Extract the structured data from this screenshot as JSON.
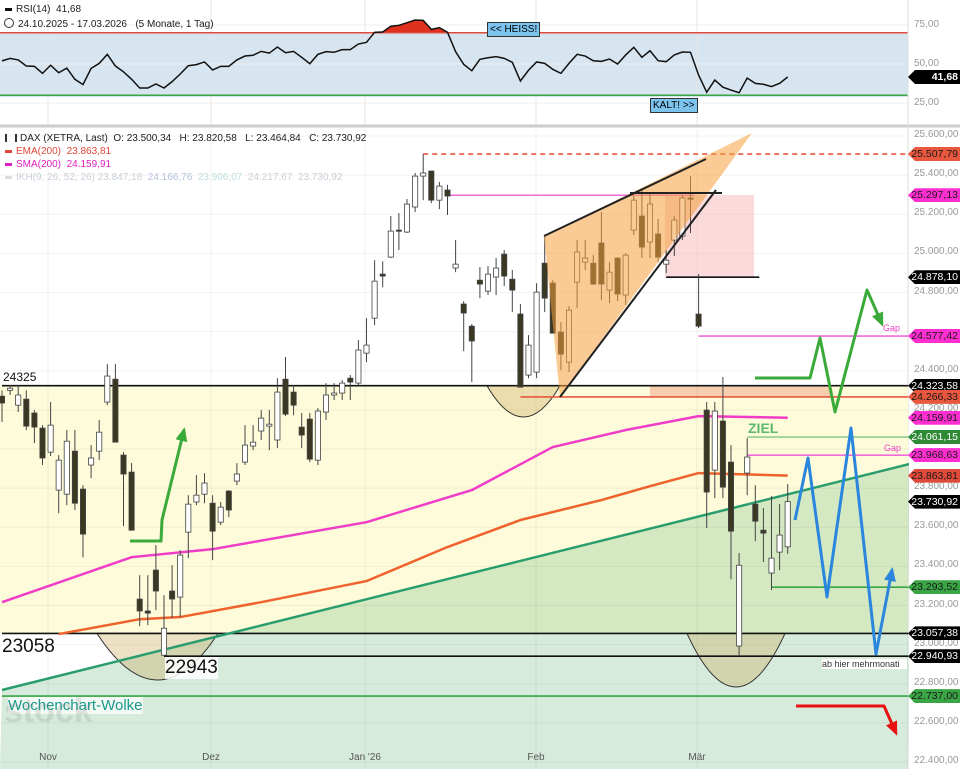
{
  "rsi_panel": {
    "title": "RSI(14)",
    "value": "41,68",
    "range": "24.10.2025 - 17.03.2026",
    "period": "(5 Monate, 1 Tag)",
    "ticks": [
      "75,00",
      "50,00",
      "25,00"
    ],
    "badge": "41,68",
    "hot_label": "<< HEISS!",
    "cold_label": "KALT! >>"
  },
  "price_panel": {
    "instrument": "DAX (XETRA, Last)",
    "ohlc": "O: 23.500,34   H: 23.820,58   L: 23.464,84   C: 23.730,92",
    "ema_label": "EMA(200)",
    "ema_value": "23.863,81",
    "sma_label": "SMA(200)",
    "sma_value": "24.159,91",
    "ikh_label": "IKH(9, 26, 52, 26)",
    "ikh_values": [
      "23.847,18",
      "24.166,76",
      "23.906,07",
      "24.217,67",
      "23.730,92"
    ],
    "price_ticks": [
      "25.600,00",
      "25.400,00",
      "25.200,00",
      "25.000,00",
      "24.800,00",
      "24.400,00",
      "24.200,00",
      "23.800,00",
      "23.600,00",
      "23.400,00",
      "23.200,00",
      "23.000,00",
      "22.800,00",
      "22.600,00",
      "22.400,00"
    ],
    "x_ticks": [
      "Nov",
      "Dez",
      "Jan '26",
      "Feb",
      "Mär"
    ],
    "tags": [
      {
        "text": "25.507,79",
        "bg": "#e8573e",
        "fg": "#1a1a1a"
      },
      {
        "text": "25.297,13",
        "bg": "#ff2ed1",
        "fg": "#1a1a1a"
      },
      {
        "text": "24.878,10",
        "bg": "#000000",
        "fg": "#ffffff"
      },
      {
        "text": "24.577,42",
        "bg": "#ff2ed1",
        "fg": "#1a1a1a"
      },
      {
        "text": "24.323,58",
        "bg": "#000000",
        "fg": "#ffffff"
      },
      {
        "text": "24.266,33",
        "bg": "#e8573e",
        "fg": "#1a1a1a"
      },
      {
        "text": "24.159,91",
        "bg": "#ff2ed1",
        "fg": "#1a1a1a"
      },
      {
        "text": "24.061,15",
        "bg": "#2f8a35",
        "fg": "#ffffff"
      },
      {
        "text": "23.968,63",
        "bg": "#ff2ed1",
        "fg": "#1a1a1a"
      },
      {
        "text": "23.863,81",
        "bg": "#e04a3a",
        "fg": "#1a1a1a"
      },
      {
        "text": "23.730,92",
        "bg": "#000000",
        "fg": "#ffffff"
      },
      {
        "text": "23.293,52",
        "bg": "#3aa545",
        "fg": "#1a1a1a"
      },
      {
        "text": "23.057,38",
        "bg": "#000000",
        "fg": "#ffffff"
      },
      {
        "text": "22.940,93",
        "bg": "#000000",
        "fg": "#ffffff"
      },
      {
        "text": "22.737,00",
        "bg": "#3aa545",
        "fg": "#1a1a1a"
      }
    ],
    "annotations": {
      "resistance_label": "24325",
      "support_label": "23058",
      "low_label": "22943",
      "target_label": "ZIEL",
      "gap_label_upper": "Gap",
      "gap_label_lower": "Gap",
      "cloud_label": "Wochenchart-Wolke",
      "note_label": "ab hier mehrmonati",
      "watermark": "stock"
    }
  },
  "colors": {
    "bear": "#3a3722",
    "bull": "#ffffff",
    "ema": "#f0622d",
    "sma": "#f03cc8",
    "trend": "#2a9d6e",
    "rsi_band": "#d6e5f0",
    "rsi_hot": "#e0301e",
    "forecast": "#2a86dc",
    "green_arrow": "#3aaa3a",
    "red_arrow": "#e81010"
  },
  "chart_data": [
    {
      "type": "line",
      "title": "RSI(14)",
      "ylim": [
        15,
        85
      ],
      "hlines": [
        70,
        30
      ],
      "values": [
        52,
        53.6,
        52.6,
        48.7,
        48.5,
        44,
        49.2,
        44.4,
        47.4,
        40.2,
        36.8,
        47.2,
        50.4,
        56.2,
        48.7,
        45,
        40.2,
        34.6,
        34.6,
        37.2,
        34.6,
        38.7,
        43.6,
        48.9,
        49.6,
        51.3,
        46.2,
        48.5,
        48.5,
        52.6,
        55.1,
        55.6,
        58.1,
        57,
        60.9,
        57.2,
        58.1,
        54.3,
        50.2,
        56.2,
        57.9,
        57.5,
        59.2,
        59.2,
        62.8,
        63.9,
        70.3,
        70.5,
        74.2,
        74.8,
        76.5,
        78.2,
        78,
        72.2,
        73.3,
        70.3,
        57.9,
        49.8,
        45.7,
        53,
        54,
        54.7,
        53.6,
        51.1,
        39.1,
        46,
        51.3,
        50.4,
        46.6,
        44,
        50.4,
        56.2,
        55.1,
        52.1,
        51.7,
        53.2,
        50,
        55.8,
        60.7,
        54.3,
        58.5,
        52.1,
        51.5,
        55.8,
        57.7,
        57.5,
        42.9,
        31.9,
        39.7,
        35.1,
        33.3,
        31.6,
        41,
        37.6,
        37,
        35.5,
        37.6,
        41.68
      ]
    },
    {
      "type": "candlestick",
      "title": "DAX (XETRA, Last)",
      "x_range": [
        "24.10.2025",
        "17.03.2026"
      ],
      "ylim": [
        22400,
        25600
      ],
      "candles_ohlc": [
        [
          24270,
          24300,
          24138,
          24235
        ],
        [
          24300,
          24327,
          24276,
          24311
        ],
        [
          24224,
          24327,
          24189,
          24276
        ],
        [
          24255,
          24300,
          24097,
          24117
        ],
        [
          24184,
          24199,
          24030,
          24112
        ],
        [
          24107,
          24122,
          23918,
          23954
        ],
        [
          23984,
          24240,
          23964,
          24122
        ],
        [
          23790,
          23969,
          23672,
          23943
        ],
        [
          23769,
          24097,
          23713,
          24040
        ],
        [
          23989,
          24097,
          23688,
          23723
        ],
        [
          23795,
          23815,
          23447,
          23565
        ],
        [
          23918,
          24020,
          23851,
          23954
        ],
        [
          23989,
          24148,
          23943,
          24086
        ],
        [
          24240,
          24434,
          24224,
          24373
        ],
        [
          24357,
          24434,
          24035,
          24035
        ],
        [
          23969,
          23984,
          23606,
          23872
        ],
        [
          23882,
          23928,
          23585,
          23585
        ],
        [
          23233,
          23355,
          23095,
          23172
        ],
        [
          23172,
          23355,
          23100,
          23161
        ],
        [
          23381,
          23509,
          23177,
          23274
        ],
        [
          22946,
          23253,
          22943,
          23084
        ],
        [
          23274,
          23406,
          23136,
          23233
        ],
        [
          23243,
          23483,
          23141,
          23458
        ],
        [
          23575,
          23764,
          23442,
          23718
        ],
        [
          23729,
          23867,
          23713,
          23764
        ],
        [
          23769,
          23877,
          23723,
          23826
        ],
        [
          23723,
          23764,
          23432,
          23580
        ],
        [
          23626,
          23729,
          23611,
          23703
        ],
        [
          23785,
          23790,
          23652,
          23688
        ],
        [
          23836,
          23928,
          23815,
          23872
        ],
        [
          23933,
          24122,
          23918,
          24020
        ],
        [
          24015,
          24122,
          23994,
          24035
        ],
        [
          24092,
          24199,
          24046,
          24158
        ],
        [
          24117,
          24199,
          23994,
          24127
        ],
        [
          24046,
          24362,
          24005,
          24291
        ],
        [
          24357,
          24470,
          24168,
          24178
        ],
        [
          24291,
          24327,
          24173,
          24224
        ],
        [
          24112,
          24184,
          24005,
          24071
        ],
        [
          24153,
          24184,
          23933,
          23948
        ],
        [
          23943,
          24209,
          23918,
          24194
        ],
        [
          24189,
          24337,
          24148,
          24276
        ],
        [
          24276,
          24337,
          24250,
          24286
        ],
        [
          24286,
          24352,
          24250,
          24337
        ],
        [
          24362,
          24378,
          24250,
          24342
        ],
        [
          24337,
          24557,
          24327,
          24506
        ],
        [
          24490,
          24669,
          24444,
          24531
        ],
        [
          24669,
          24965,
          24633,
          24858
        ],
        [
          24894,
          24960,
          24826,
          24884
        ],
        [
          24981,
          25191,
          24976,
          25114
        ],
        [
          25119,
          25206,
          25017,
          25114
        ],
        [
          25109,
          25278,
          25104,
          25252
        ],
        [
          25237,
          25411,
          25211,
          25395
        ],
        [
          25395,
          25508,
          25272,
          25411
        ],
        [
          25421,
          25421,
          25257,
          25272
        ],
        [
          25272,
          25365,
          25226,
          25344
        ],
        [
          25324,
          25350,
          25196,
          25293
        ],
        [
          24925,
          25068,
          24904,
          24945
        ],
        [
          24741,
          24756,
          24500,
          24695
        ],
        [
          24628,
          24639,
          24342,
          24552
        ],
        [
          24863,
          24930,
          24771,
          24843
        ],
        [
          24807,
          24935,
          24787,
          24894
        ],
        [
          24879,
          24976,
          24787,
          24925
        ],
        [
          24996,
          25017,
          24833,
          24884
        ],
        [
          24868,
          24915,
          24700,
          24812
        ],
        [
          24690,
          24741,
          24316,
          24316
        ],
        [
          24378,
          24582,
          24362,
          24531
        ],
        [
          24393,
          24848,
          24362,
          24802
        ],
        [
          24950,
          25088,
          24700,
          24771
        ],
        [
          24848,
          24863,
          24592,
          24592
        ],
        [
          24598,
          24649,
          24403,
          24485
        ],
        [
          24444,
          24730,
          24393,
          24710
        ],
        [
          24853,
          25068,
          24720,
          25007
        ],
        [
          24955,
          25068,
          24915,
          24976
        ],
        [
          24950,
          24991,
          24838,
          24843
        ],
        [
          25053,
          25211,
          24761,
          24843
        ],
        [
          24812,
          24955,
          24746,
          24904
        ],
        [
          24976,
          24981,
          24756,
          24792
        ],
        [
          24787,
          25002,
          24736,
          24991
        ],
        [
          25119,
          25293,
          25094,
          25272
        ],
        [
          25191,
          25324,
          24976,
          25032
        ],
        [
          25058,
          25308,
          24976,
          25252
        ],
        [
          25099,
          25176,
          24955,
          24981
        ],
        [
          24945,
          25017,
          24899,
          24965
        ],
        [
          25068,
          25191,
          24986,
          25170
        ],
        [
          25088,
          25298,
          25068,
          25283
        ],
        [
          25283,
          25395,
          25104,
          25278
        ],
        [
          24690,
          24894,
          24618,
          24628
        ],
        [
          24199,
          24240,
          23596,
          23780
        ],
        [
          23892,
          24240,
          23749,
          24194
        ],
        [
          24143,
          24368,
          23749,
          23805
        ],
        [
          23933,
          24020,
          23335,
          23580
        ],
        [
          22993,
          23468,
          22941,
          23406
        ],
        [
          23877,
          24056,
          23764,
          23959
        ],
        [
          23718,
          23815,
          23529,
          23631
        ],
        [
          23585,
          23698,
          23422,
          23570
        ],
        [
          23366,
          23759,
          23279,
          23442
        ],
        [
          23473,
          23718,
          23381,
          23560
        ],
        [
          23500,
          23821,
          23465,
          23731
        ]
      ],
      "series": [
        {
          "name": "EMA(200)",
          "points": [
            [
              7,
              23054
            ],
            [
              17,
              23130
            ],
            [
              22,
              23141
            ],
            [
              32,
              23217
            ],
            [
              45,
              23325
            ],
            [
              55,
              23499
            ],
            [
              64,
              23637
            ],
            [
              74,
              23739
            ],
            [
              80,
              23810
            ],
            [
              86,
              23877
            ],
            [
              97,
              23864
            ]
          ]
        },
        {
          "name": "SMA(200)",
          "points": [
            [
              0,
              23217
            ],
            [
              16,
              23447
            ],
            [
              26,
              23488
            ],
            [
              45,
              23626
            ],
            [
              58,
              23790
            ],
            [
              68,
              24010
            ],
            [
              77,
              24097
            ],
            [
              86,
              24168
            ],
            [
              97,
              24160
            ]
          ]
        }
      ],
      "trendline": [
        [
          0,
          22768
        ],
        [
          112,
          23923
        ]
      ],
      "levels": [
        {
          "value": 25507.79,
          "from": 52,
          "color": "#e8573e",
          "dashed": true
        },
        {
          "value": 25297.13,
          "from": 55,
          "to": 85,
          "color": "#f06ad8"
        },
        {
          "value": 24878.1,
          "from": 82,
          "to": 93,
          "color": "#111"
        },
        {
          "value": 24577.42,
          "from": 86,
          "color": "#f06ad8"
        },
        {
          "value": 24323.58,
          "from": 0,
          "color": "#111"
        },
        {
          "value": 24266.33,
          "from": 64,
          "color": "#e8573e"
        },
        {
          "value": 24061.15,
          "from": 92,
          "color": "#8fcf8f"
        },
        {
          "value": 23968.63,
          "from": 92,
          "color": "#f06ad8"
        },
        {
          "value": 23293.52,
          "from": 95,
          "color": "#3aa545"
        },
        {
          "value": 23057.38,
          "from": 0,
          "color": "#111"
        },
        {
          "value": 22940.93,
          "from": 20,
          "color": "#111"
        },
        {
          "value": 22737.0,
          "from": 0,
          "color": "#3aa545"
        }
      ]
    }
  ]
}
